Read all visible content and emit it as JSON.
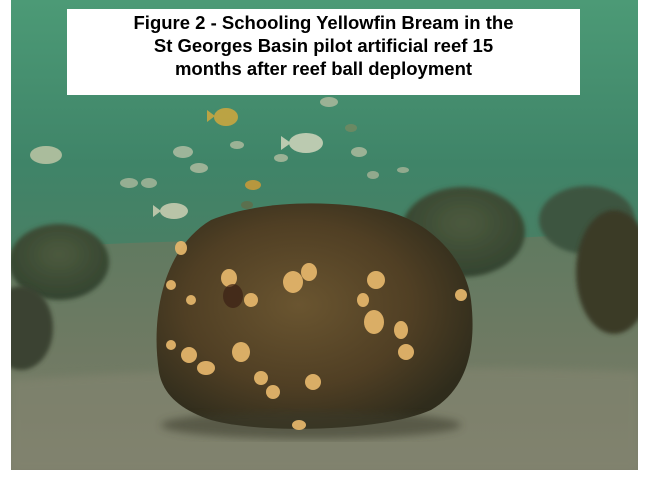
{
  "photo": {
    "subject": "reef-ball-with-schooling-fish",
    "water_color": "#3f8266",
    "sand_color": "#6b7560",
    "reef_color": "#5a4a2a"
  },
  "caption": {
    "line1": "Figure 2 - Schooling Yellowfin Bream in the",
    "line2": "St Georges Basin pilot artificial reef 15",
    "line3": "months after reef ball deployment"
  }
}
